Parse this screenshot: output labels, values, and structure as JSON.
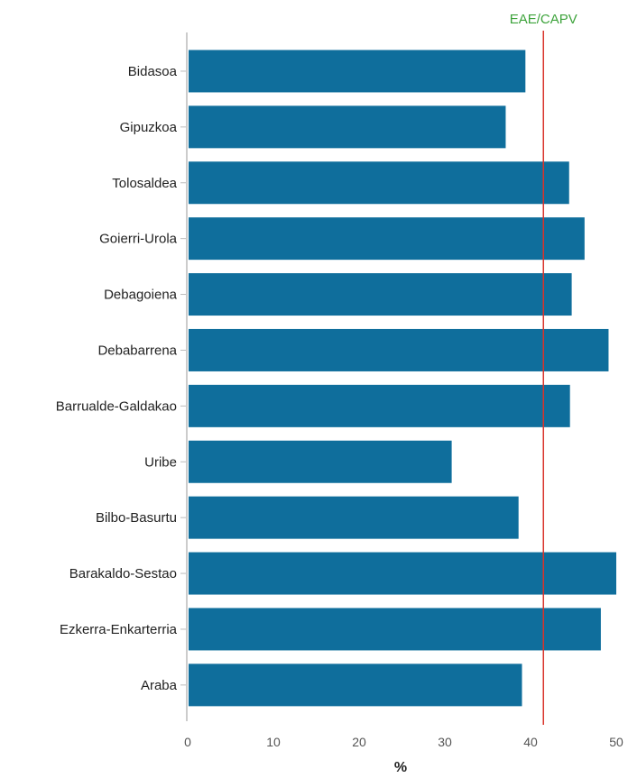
{
  "chart_data": {
    "type": "bar",
    "orientation": "horizontal",
    "categories": [
      "Bidasoa",
      "Gipuzkoa",
      "Tolosaldea",
      "Goierri-Urola",
      "Debagoiena",
      "Debabarrena",
      "Barrualde-Galdakao",
      "Uribe",
      "Bilbo-Basurtu",
      "Barakaldo-Sestao",
      "Ezkerra-Enkarterria",
      "Araba"
    ],
    "values": [
      39.4,
      37.1,
      44.5,
      46.3,
      44.8,
      49.1,
      44.6,
      30.8,
      38.6,
      50.0,
      48.2,
      39.0
    ],
    "xlabel": "%",
    "ylabel": "",
    "xlim": [
      0,
      50
    ],
    "xticks": [
      "0",
      "10",
      "20",
      "30",
      "40",
      "50"
    ],
    "grid": false,
    "reference_line": {
      "label": "EAE/CAPV",
      "value": 41.5,
      "line_color": "#d9342b",
      "label_color": "#3da33b"
    },
    "bar_color": "#0f6e9c"
  }
}
